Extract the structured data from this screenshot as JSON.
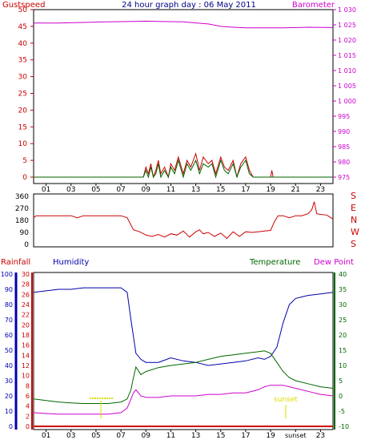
{
  "title": "24 hour graph day : 06 May 2011",
  "colors": {
    "gust": "#cc0000",
    "wind": "#006600",
    "windLight": "#00aa00",
    "barometer": "#cc00cc",
    "direction": "#cc0000",
    "rain": "#cc0000",
    "humidity": "#0000aa",
    "temperature": "#006600",
    "dewpoint": "#cc00cc",
    "sunrise": "#dddd00"
  },
  "xaxis": {
    "labels_top": [
      "01",
      "03",
      "05",
      "07",
      "09",
      "11",
      "13",
      "15",
      "17",
      "19",
      "21",
      "23"
    ],
    "labels_bottom": [
      "01",
      "03",
      "05",
      "07",
      "09",
      "11",
      "13",
      "15",
      "17",
      "19",
      "sunset",
      "23"
    ]
  },
  "panel1": {
    "left_label": "Gustspeed",
    "right_label": "Barometer",
    "left_ticks": [
      "50",
      "45",
      "40",
      "35",
      "30",
      "25",
      "20",
      "15",
      "10",
      "5",
      "0"
    ],
    "right_ticks": [
      "1 030",
      "1 025",
      "1 020",
      "1 015",
      "1 010",
      "1 005",
      "1 000",
      "995",
      "990",
      "985",
      "980",
      "975"
    ]
  },
  "panel2": {
    "left_ticks": [
      "360",
      "270",
      "180",
      "90",
      "0"
    ],
    "compass": [
      "S",
      "E",
      "N",
      "W",
      "S"
    ]
  },
  "panel3": {
    "labels": {
      "rainfall": "Rainfall",
      "humidity": "Humidity",
      "temperature": "Temperature",
      "dewpoint": "Dew Point",
      "sunset": "sunset"
    },
    "humidity_ticks": [
      "100",
      "90",
      "80",
      "70",
      "60",
      "50",
      "40",
      "30",
      "20",
      "10",
      "0"
    ],
    "rain_ticks": [
      "30",
      "28",
      "26",
      "24",
      "22",
      "20",
      "18",
      "16",
      "14",
      "12",
      "10",
      "8",
      "6",
      "4",
      "2",
      "0"
    ],
    "temp_ticks": [
      "40",
      "35",
      "30",
      "25",
      "20",
      "15",
      "10",
      "5",
      "0",
      "-5",
      "-10"
    ]
  },
  "chart_data": [
    {
      "type": "line",
      "title": "24 hour graph day : 06 May 2011",
      "xlabel": "",
      "ylabel": "Gustspeed",
      "ylabel_right": "Barometer",
      "xlim": [
        0,
        24
      ],
      "ylim": [
        0,
        50
      ],
      "ylim_right": [
        975,
        1030
      ],
      "series": [
        {
          "name": "Barometer",
          "axis": "right",
          "x": [
            0,
            2,
            4,
            6,
            8,
            9,
            10,
            12,
            14,
            15,
            16,
            17,
            18,
            20,
            22,
            24
          ],
          "y": [
            1025.6,
            1025.6,
            1025.8,
            1026.0,
            1026.1,
            1026.2,
            1026.1,
            1026.0,
            1025.3,
            1024.5,
            1024.2,
            1024.0,
            1024.0,
            1024.0,
            1024.2,
            1024.1
          ]
        },
        {
          "name": "Gustspeed",
          "axis": "left",
          "x": [
            0,
            8.8,
            9.0,
            9.2,
            9.4,
            9.6,
            9.8,
            10.0,
            10.2,
            10.5,
            10.8,
            11.0,
            11.3,
            11.6,
            12.0,
            12.3,
            12.6,
            13.0,
            13.3,
            13.6,
            14.0,
            14.3,
            14.6,
            15.0,
            15.3,
            15.6,
            16.0,
            16.3,
            16.6,
            17.0,
            17.3,
            17.6,
            18.0,
            18.2,
            19.0,
            19.1,
            19.2,
            24
          ],
          "y": [
            0,
            0,
            3,
            1,
            4,
            0,
            2,
            5,
            1,
            3,
            0,
            4,
            2,
            6,
            1,
            5,
            3,
            7,
            2,
            6,
            4,
            5,
            1,
            6,
            3,
            2,
            5,
            0,
            4,
            6,
            2,
            0,
            0,
            0,
            0,
            2,
            0,
            0
          ]
        },
        {
          "name": "Windspeed",
          "axis": "left",
          "x": [
            0,
            8.8,
            9.0,
            9.2,
            9.4,
            9.6,
            9.8,
            10.0,
            10.2,
            10.5,
            10.8,
            11.0,
            11.3,
            11.6,
            12.0,
            12.3,
            12.6,
            13.0,
            13.3,
            13.6,
            14.0,
            14.3,
            14.6,
            15.0,
            15.3,
            15.6,
            16.0,
            16.3,
            16.6,
            17.0,
            17.3,
            17.6,
            18.0,
            24
          ],
          "y": [
            0,
            0,
            2,
            0,
            3,
            0,
            1,
            4,
            0,
            2,
            0,
            3,
            1,
            5,
            0,
            4,
            2,
            5,
            1,
            4,
            3,
            4,
            0,
            5,
            2,
            1,
            4,
            0,
            3,
            5,
            1,
            0,
            0,
            0
          ]
        }
      ]
    },
    {
      "type": "line",
      "xlabel": "",
      "ylabel": "",
      "xlim": [
        0,
        24
      ],
      "ylim": [
        0,
        360
      ],
      "series": [
        {
          "name": "",
          "x": [
            0,
            0.2,
            1,
            2,
            3,
            3.5,
            4,
            5,
            6,
            7,
            7.5,
            8,
            8.5,
            9,
            9.5,
            10,
            10.5,
            11,
            11.5,
            12,
            12.5,
            13,
            13.3,
            13.6,
            14,
            14.5,
            15,
            15.5,
            16,
            16.5,
            17,
            17.5,
            18,
            18.5,
            19,
            19.3,
            19.6,
            20,
            20.5,
            21,
            21.5,
            22,
            22.3,
            22.5,
            22.7,
            23,
            23.5,
            24
          ],
          "y": [
            200,
            215,
            215,
            215,
            215,
            200,
            215,
            215,
            215,
            215,
            200,
            110,
            95,
            70,
            60,
            75,
            55,
            80,
            70,
            100,
            55,
            95,
            110,
            80,
            90,
            60,
            85,
            45,
            95,
            60,
            95,
            90,
            95,
            100,
            105,
            170,
            215,
            215,
            200,
            215,
            215,
            230,
            260,
            320,
            230,
            225,
            220,
            190
          ]
        }
      ]
    },
    {
      "type": "line",
      "xlabel": "",
      "ylabel": "Humidity",
      "ylabel_right": "Temperature",
      "xlim": [
        0,
        24
      ],
      "ylim": [
        0,
        100
      ],
      "ylim_right": [
        -10,
        40
      ],
      "series": [
        {
          "name": "Humidity",
          "axis": "left",
          "x": [
            0,
            1,
            2,
            3,
            4,
            5,
            6,
            7,
            7.5,
            7.8,
            8.2,
            8.6,
            9,
            10,
            11,
            12,
            13,
            14,
            15,
            16,
            17,
            18,
            18.5,
            19,
            19.5,
            20,
            20.5,
            21,
            21.5,
            22,
            23,
            24
          ],
          "y": [
            88,
            89,
            90,
            90,
            91,
            91,
            91,
            91,
            88,
            70,
            48,
            44,
            42,
            42,
            45,
            43,
            42,
            40,
            41,
            42,
            43,
            45,
            44,
            46,
            52,
            68,
            80,
            84,
            85,
            86,
            87,
            88
          ]
        },
        {
          "name": "Temperature",
          "axis": "right",
          "x": [
            0,
            1,
            2,
            3,
            4,
            5,
            6,
            7,
            7.5,
            7.8,
            8.0,
            8.2,
            8.6,
            9,
            10,
            11,
            12,
            13,
            14,
            15,
            16,
            17,
            18,
            18.5,
            19,
            19.5,
            20,
            20.5,
            21,
            22,
            23,
            24
          ],
          "y": [
            -1,
            -1.5,
            -2,
            -2.3,
            -2.5,
            -2.5,
            -2.5,
            -2,
            -1,
            2,
            6,
            9.5,
            7,
            8,
            9.3,
            10,
            10.5,
            11,
            12,
            13,
            13.5,
            14,
            14.5,
            14.8,
            14,
            11,
            8,
            6,
            5,
            4,
            3,
            2.5
          ]
        },
        {
          "name": "Dew Point",
          "axis": "right",
          "x": [
            0,
            1,
            2,
            3,
            4,
            5,
            6,
            7,
            7.5,
            7.8,
            8.0,
            8.2,
            8.6,
            9,
            10,
            11,
            12,
            13,
            14,
            15,
            16,
            17,
            18,
            18.5,
            19,
            19.5,
            20,
            20.5,
            21,
            22,
            23,
            24
          ],
          "y": [
            -5.5,
            -5.8,
            -6,
            -6,
            -6,
            -6,
            -6,
            -5.5,
            -4,
            -1,
            1,
            2,
            0,
            -0.5,
            -0.5,
            0,
            0,
            0,
            0.5,
            0.5,
            1,
            1,
            2,
            3,
            3.5,
            3.5,
            3.5,
            3,
            2.5,
            1.5,
            0.5,
            0
          ]
        },
        {
          "name": "Rainfall",
          "axis": "left",
          "x": [
            0,
            24
          ],
          "y": [
            0,
            0
          ]
        }
      ]
    }
  ]
}
